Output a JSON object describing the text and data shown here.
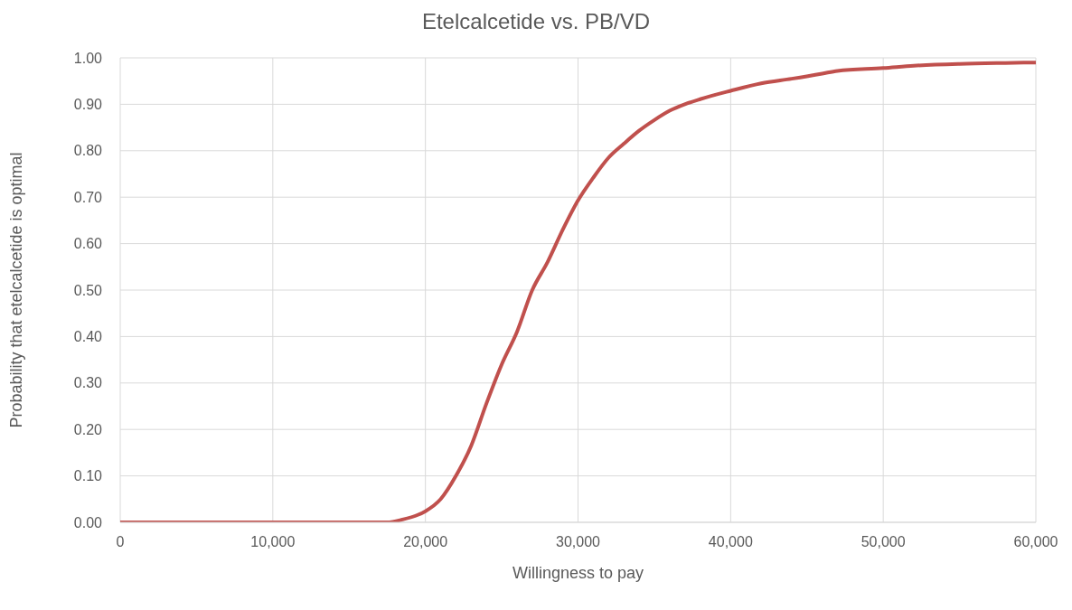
{
  "chart_data": {
    "type": "line",
    "title": "Etelcalcetide vs. PB/VD",
    "xlabel": "Willingness to pay",
    "ylabel": "Probability that etelcalcetide is optimal",
    "x": [
      0,
      5000,
      10000,
      15000,
      17500,
      18500,
      19500,
      20000,
      21000,
      22000,
      23000,
      24000,
      25000,
      26000,
      27000,
      28000,
      29000,
      30000,
      31000,
      32000,
      33000,
      34000,
      35000,
      36000,
      37000,
      38000,
      40000,
      42000,
      44000,
      46000,
      47000,
      50000,
      52000,
      55000,
      58000,
      60000
    ],
    "series": [
      {
        "color": "#c0504d",
        "values": [
          0,
          0,
          0,
          0,
          0,
          0.006,
          0.016,
          0.024,
          0.05,
          0.1,
          0.165,
          0.256,
          0.34,
          0.41,
          0.5,
          0.56,
          0.63,
          0.693,
          0.742,
          0.785,
          0.815,
          0.843,
          0.866,
          0.886,
          0.9,
          0.911,
          0.929,
          0.945,
          0.955,
          0.966,
          0.972,
          0.978,
          0.983,
          0.987,
          0.989,
          0.99
        ]
      }
    ],
    "xlim": [
      0,
      60000
    ],
    "xticks": [
      0,
      {
        "value": 10000,
        "label": "10,000"
      },
      {
        "value": 20000,
        "label": "20,000"
      },
      {
        "value": 30000,
        "label": "30,000"
      },
      {
        "value": 40000,
        "label": "40,000"
      },
      {
        "value": 50000,
        "label": "50,000"
      },
      {
        "value": 60000,
        "label": "60,000"
      }
    ],
    "ylim": [
      0,
      1
    ],
    "yticks": [
      {
        "value": 0,
        "label": "0.00"
      },
      {
        "value": 0.1,
        "label": "0.10"
      },
      {
        "value": 0.2,
        "label": "0.20"
      },
      {
        "value": 0.3,
        "label": "0.30"
      },
      {
        "value": 0.4,
        "label": "0.40"
      },
      {
        "value": 0.5,
        "label": "0.50"
      },
      {
        "value": 0.6,
        "label": "0.60"
      },
      {
        "value": 0.7,
        "label": "0.70"
      },
      {
        "value": 0.8,
        "label": "0.80"
      },
      {
        "value": 0.9,
        "label": "0.90"
      },
      {
        "value": 1,
        "label": "1.00"
      }
    ],
    "grid": true,
    "marker": "none",
    "line_style": "solid"
  }
}
